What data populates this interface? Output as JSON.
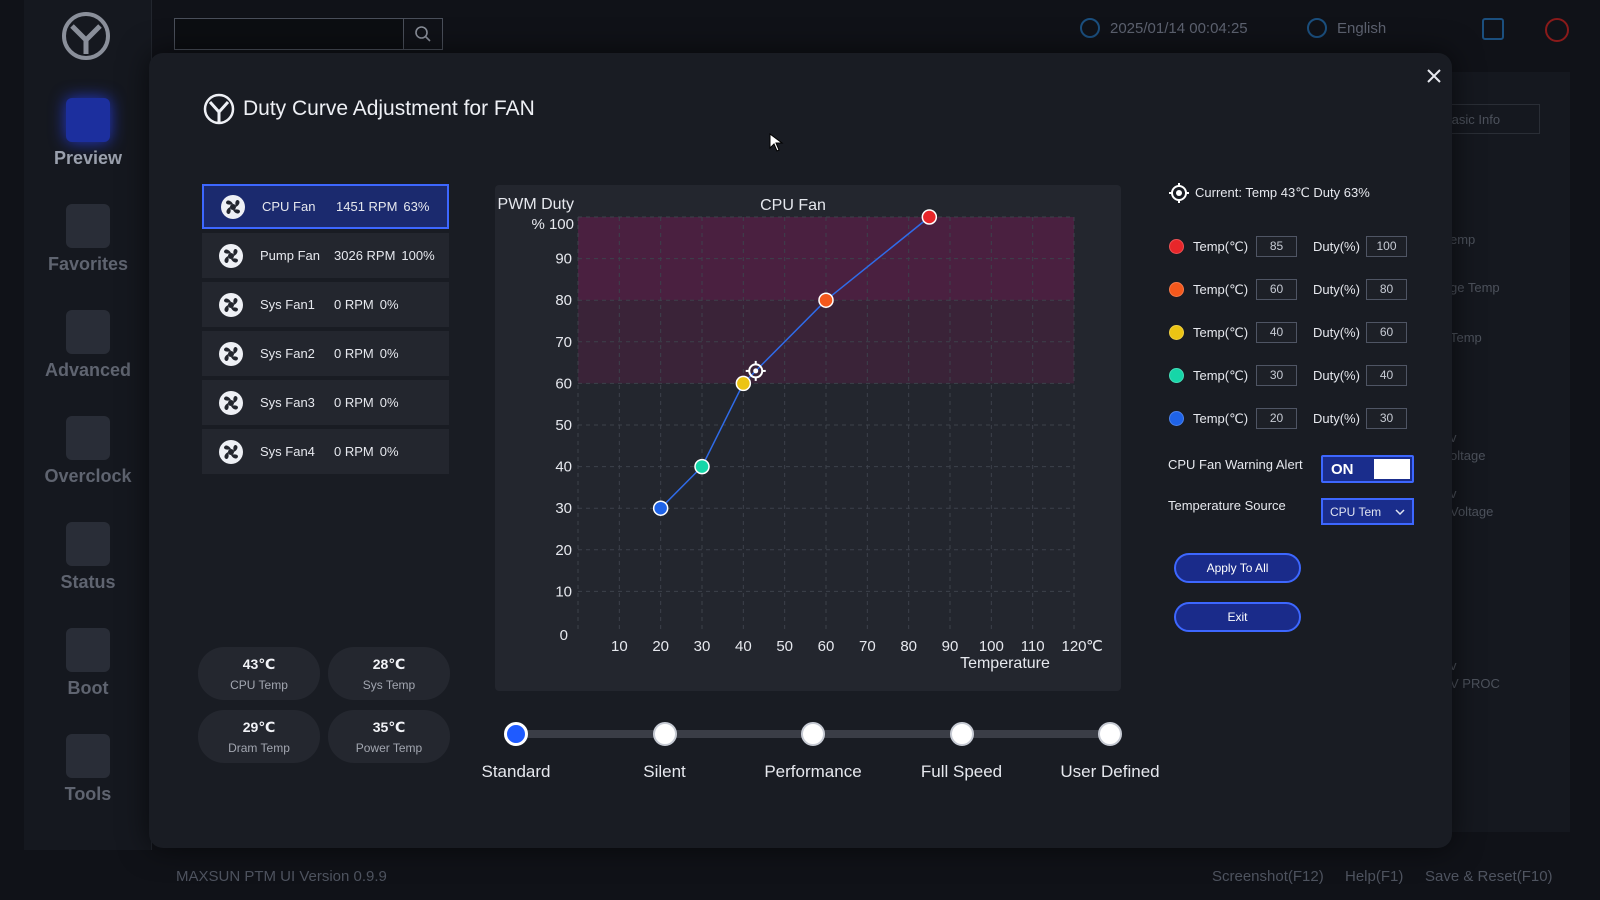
{
  "topbar": {
    "datetime": "2025/01/14 00:04:25",
    "language": "English"
  },
  "sidebar": {
    "items": [
      {
        "label": "Preview"
      },
      {
        "label": "Favorites"
      },
      {
        "label": "Advanced"
      },
      {
        "label": "Overclock"
      },
      {
        "label": "Status"
      },
      {
        "label": "Boot"
      },
      {
        "label": "Tools"
      }
    ]
  },
  "right_bg": {
    "tab": "Basic Info",
    "labels": [
      "emp",
      "ge Temp",
      "Temp",
      "v",
      "oltage",
      "v",
      "Voltage",
      "v",
      "V PROC"
    ]
  },
  "footer": {
    "version": "MAXSUN PTM UI Version 0.9.9",
    "screenshot": "Screenshot(F12)",
    "help": "Help(F1)",
    "save_reset": "Save & Reset(F10)"
  },
  "modal": {
    "title": "Duty Curve Adjustment for FAN",
    "fans": [
      {
        "name": "CPU Fan",
        "rpm": "1451 RPM",
        "duty": "63%"
      },
      {
        "name": "Pump Fan",
        "rpm": "3026 RPM",
        "duty": "100%"
      },
      {
        "name": "Sys Fan1",
        "rpm": "0 RPM",
        "duty": "0%"
      },
      {
        "name": "Sys Fan2",
        "rpm": "0 RPM",
        "duty": "0%"
      },
      {
        "name": "Sys Fan3",
        "rpm": "0 RPM",
        "duty": "0%"
      },
      {
        "name": "Sys Fan4",
        "rpm": "0 RPM",
        "duty": "0%"
      }
    ],
    "temps": [
      {
        "value": "43℃",
        "label": "CPU Temp"
      },
      {
        "value": "28℃",
        "label": "Sys Temp"
      },
      {
        "value": "29℃",
        "label": "Dram Temp"
      },
      {
        "value": "35℃",
        "label": "Power Temp"
      }
    ],
    "current": "Current: Temp 43℃  Duty 63%",
    "temp_label": "Temp(℃)",
    "duty_label": "Duty(%)",
    "points": [
      {
        "color": "#e8262a",
        "temp": "85",
        "duty": "100"
      },
      {
        "color": "#f4581c",
        "temp": "60",
        "duty": "80"
      },
      {
        "color": "#ecc413",
        "temp": "40",
        "duty": "60"
      },
      {
        "color": "#16d6a8",
        "temp": "30",
        "duty": "40"
      },
      {
        "color": "#1f63e8",
        "temp": "20",
        "duty": "30"
      }
    ],
    "warning_label": "CPU Fan Warning Alert",
    "warning_state": "ON",
    "source_label": "Temperature Source",
    "source_value": "CPU Tem",
    "apply_all": "Apply To All",
    "exit": "Exit",
    "presets": [
      "Standard",
      "Silent",
      "Performance",
      "Full Speed",
      "User Defined"
    ],
    "selected_preset": "Standard"
  },
  "chart_data": {
    "type": "line",
    "title": "CPU Fan",
    "ylabel_line1": "PWM Duty",
    "ylabel_line2": "% 100",
    "xlabel": "Temperature",
    "x_unit": "℃",
    "xlim": [
      0,
      120
    ],
    "ylim": [
      0,
      100
    ],
    "x_ticks": [
      10,
      20,
      30,
      40,
      50,
      60,
      70,
      80,
      90,
      100,
      110,
      120
    ],
    "y_ticks": [
      10,
      20,
      30,
      40,
      50,
      60,
      70,
      80,
      90
    ],
    "origin_label": "0",
    "grid": true,
    "series": [
      {
        "x": [
          20,
          30,
          40,
          60,
          85
        ],
        "y": [
          30,
          40,
          60,
          80,
          100
        ],
        "colors": [
          "#1f63e8",
          "#16d6a8",
          "#ecc413",
          "#f4581c",
          "#e8262a"
        ]
      }
    ],
    "current_point": {
      "x": 43,
      "y": 63
    },
    "bands": [
      {
        "y_from": 60,
        "y_to": 80,
        "color": "#3a2338"
      },
      {
        "y_from": 80,
        "y_to": 100,
        "color": "#4a2040"
      }
    ],
    "line_color": "#2f6be8"
  }
}
